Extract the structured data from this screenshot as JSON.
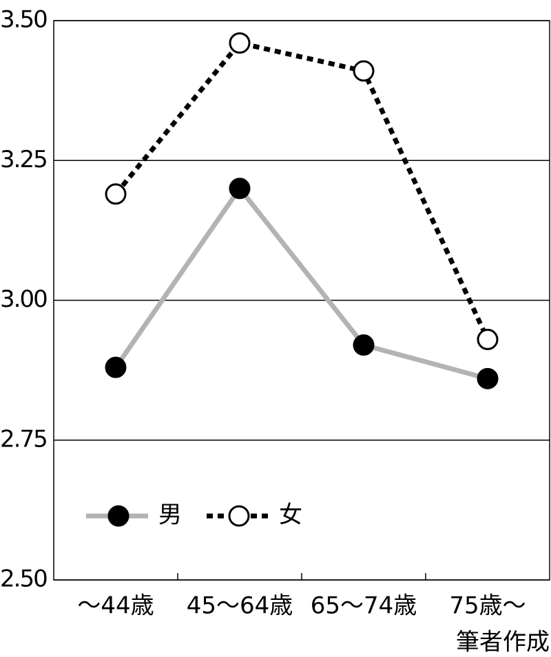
{
  "chart_data": {
    "type": "line",
    "categories": [
      "～44歳",
      "45～64歳",
      "65～74歳",
      "75歳～"
    ],
    "series": [
      {
        "name": "男",
        "color": "#b3b3b3",
        "marker_color": "#000000",
        "linestyle": "solid",
        "marker": "filled",
        "values": [
          2.88,
          3.2,
          2.92,
          2.86
        ]
      },
      {
        "name": "女",
        "color": "#000000",
        "marker_color": "#000000",
        "linestyle": "dotted",
        "marker": "open",
        "values": [
          3.19,
          3.46,
          3.41,
          2.93
        ]
      }
    ],
    "ylim": [
      2.5,
      3.5
    ],
    "yticks": [
      {
        "value": 2.5,
        "label": "2.50"
      },
      {
        "value": 2.75,
        "label": "2.75"
      },
      {
        "value": 3,
        "label": "3.00"
      },
      {
        "value": 3.25,
        "label": "3.25"
      },
      {
        "value": 3.5,
        "label": "3.50"
      }
    ],
    "grid": true,
    "legend": "lower-left",
    "source": "筆者作成"
  }
}
